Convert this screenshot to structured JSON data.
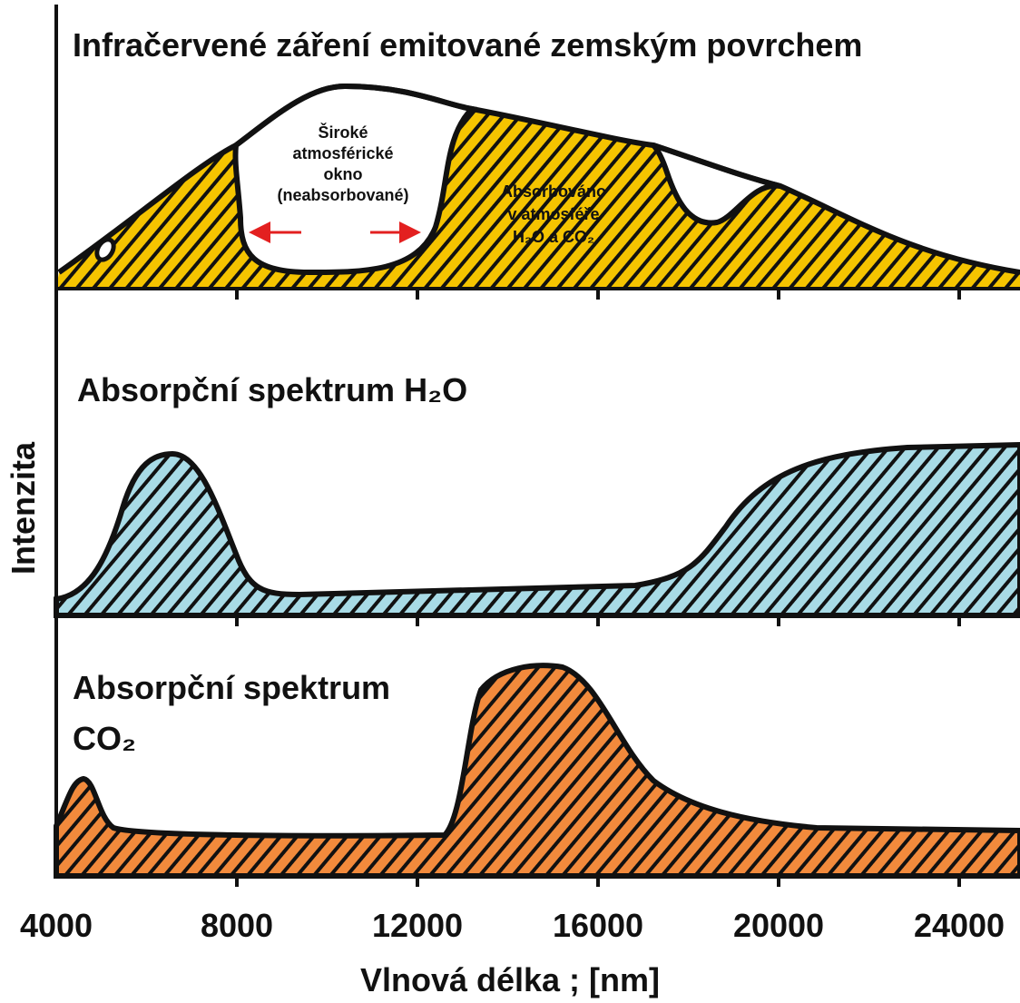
{
  "title_top": "Infračervené záření emitované zemským povrchem",
  "window_label": [
    "Široké",
    "atmosférické",
    "okno",
    "(neabsorbované)"
  ],
  "absorbed_label": [
    "Absorbováno",
    "v atmosféře",
    "H₂O a CO₂"
  ],
  "title_h2o": "Absorpční spektrum H₂O",
  "title_co2": [
    "Absorpční spektrum",
    "CO₂"
  ],
  "y_label": "Intenzita",
  "x_label": "Vlnová délka ; [nm]",
  "xticks": [
    4000,
    8000,
    12000,
    16000,
    20000,
    24000
  ]
}
